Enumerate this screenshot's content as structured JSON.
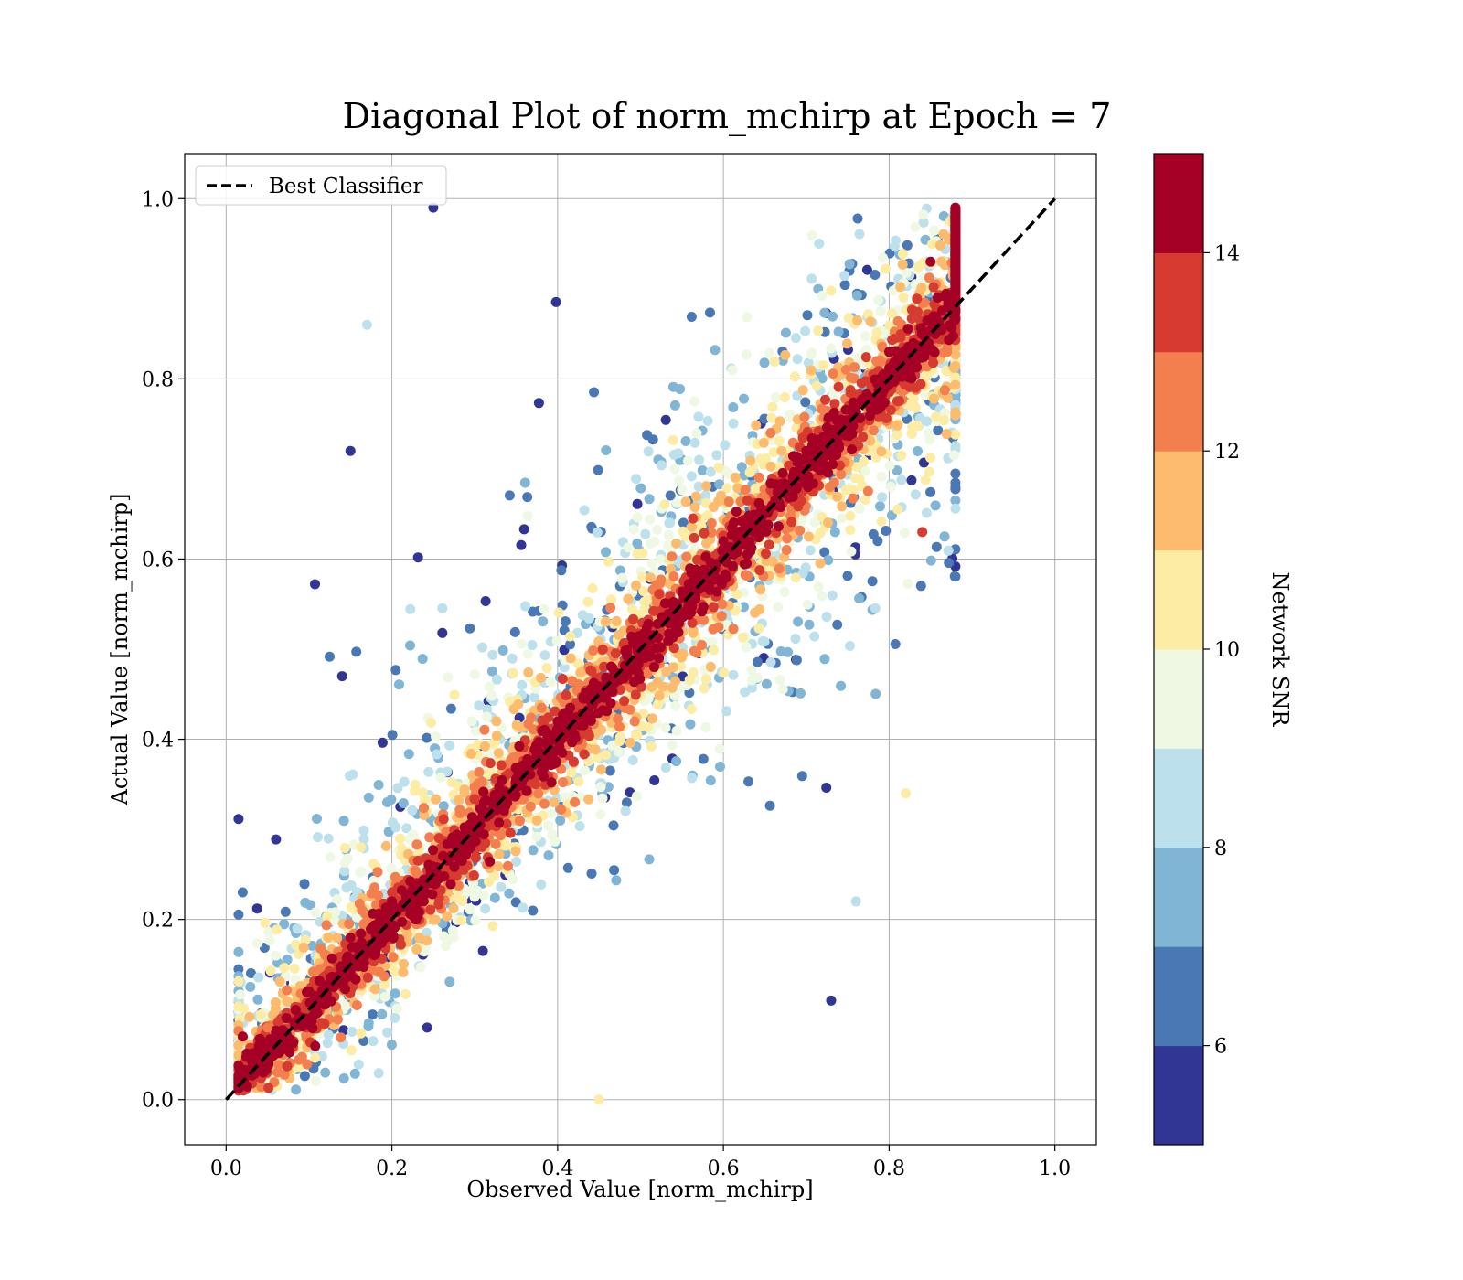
{
  "chart_data": {
    "type": "scatter",
    "title": "Diagonal Plot of norm_mchirp at Epoch = 7",
    "xlabel": "Observed Value [norm_mchirp]",
    "ylabel": "Actual Value [norm_mchirp]",
    "xlim": [
      -0.05,
      1.05
    ],
    "ylim": [
      -0.05,
      1.05
    ],
    "xticks": [
      "0.0",
      "0.2",
      "0.4",
      "0.6",
      "0.8",
      "1.0"
    ],
    "yticks": [
      "0.0",
      "0.2",
      "0.4",
      "0.6",
      "0.8",
      "1.0"
    ],
    "grid": true,
    "legend": {
      "placement": "upper-left",
      "entries": [
        {
          "label": "Best Classifier",
          "style": "dashed",
          "color": "#000000"
        }
      ]
    },
    "reference_line": {
      "label": "Best Classifier",
      "x": [
        0.0,
        1.0
      ],
      "y": [
        0.0,
        1.0
      ]
    },
    "colorbar": {
      "label": "Network SNR",
      "range": [
        5,
        15
      ],
      "ticks": [
        "6",
        "8",
        "10",
        "12",
        "14"
      ],
      "tick_values": [
        6,
        8,
        10,
        12,
        14
      ],
      "bin_edges": [
        5,
        6,
        7,
        8,
        9,
        10,
        11,
        12,
        13,
        14,
        15
      ],
      "colors": [
        "#313695",
        "#4a78b4",
        "#80b5d6",
        "#bde1ec",
        "#eef8e2",
        "#fdeca3",
        "#fcbb6d",
        "#f47f4e",
        "#d73b2f",
        "#a50026"
      ]
    },
    "points_description_note": null,
    "series": [
      {
        "name": "",
        "points": [
          {
            "x": 0.02,
            "y": 0.07,
            "snr": 15
          },
          {
            "x": 0.05,
            "y": 0.08,
            "snr": 12
          },
          {
            "x": 0.1,
            "y": 0.12,
            "snr": 15
          },
          {
            "x": 0.15,
            "y": 0.18,
            "snr": 15
          },
          {
            "x": 0.2,
            "y": 0.22,
            "snr": 15
          },
          {
            "x": 0.3,
            "y": 0.31,
            "snr": 15
          },
          {
            "x": 0.4,
            "y": 0.42,
            "snr": 15
          },
          {
            "x": 0.5,
            "y": 0.51,
            "snr": 15
          },
          {
            "x": 0.6,
            "y": 0.62,
            "snr": 15
          },
          {
            "x": 0.7,
            "y": 0.72,
            "snr": 15
          },
          {
            "x": 0.8,
            "y": 0.83,
            "snr": 15
          },
          {
            "x": 0.85,
            "y": 0.93,
            "snr": 15
          },
          {
            "x": 0.25,
            "y": 0.99,
            "snr": 5
          },
          {
            "x": 0.17,
            "y": 0.86,
            "snr": 8
          },
          {
            "x": 0.15,
            "y": 0.72,
            "snr": 5
          },
          {
            "x": 0.14,
            "y": 0.47,
            "snr": 5
          },
          {
            "x": 0.45,
            "y": 0.0,
            "snr": 10
          },
          {
            "x": 0.73,
            "y": 0.11,
            "snr": 5
          },
          {
            "x": 0.82,
            "y": 0.34,
            "snr": 10
          },
          {
            "x": 0.76,
            "y": 0.22,
            "snr": 8
          },
          {
            "x": 0.84,
            "y": 0.63,
            "snr": 13
          },
          {
            "x": 0.88,
            "y": 0.9,
            "snr": 15
          }
        ]
      }
    ]
  }
}
